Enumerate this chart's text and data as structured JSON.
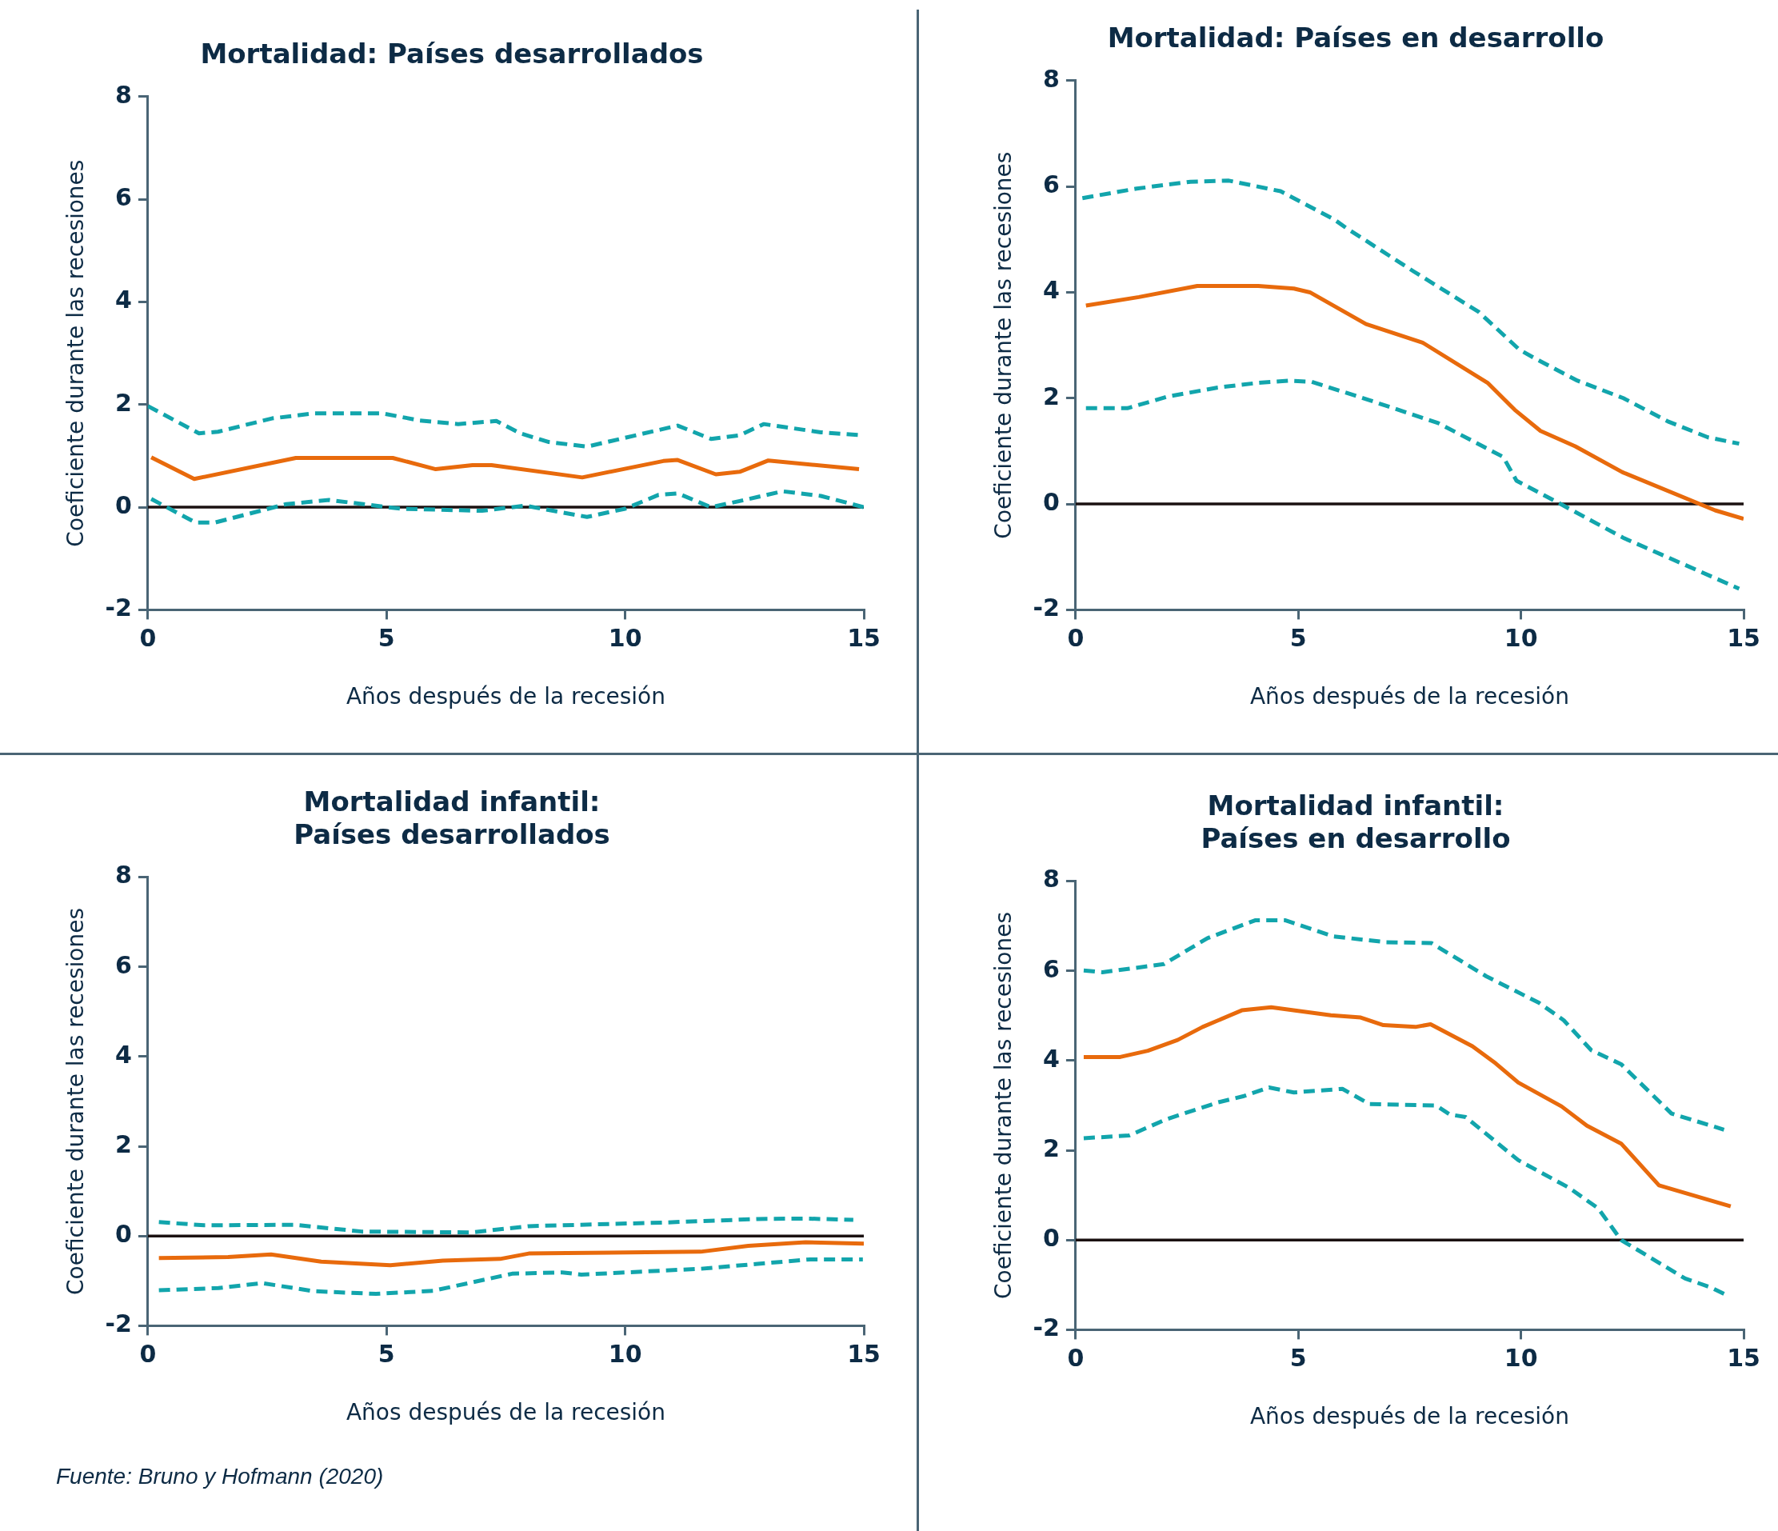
{
  "chart_data": [
    {
      "type": "line",
      "title": "Mortalidad: Países desarrollados",
      "xlabel": "Años después de la recesión",
      "ylabel": "Coeficiente durante las recesiones",
      "xlim": [
        0,
        15
      ],
      "xticks": [
        0,
        5,
        10,
        15
      ],
      "ylim": [
        -2,
        8
      ],
      "yticks": [
        -2,
        0,
        2,
        4,
        6,
        8
      ],
      "marker": "none",
      "legend": false,
      "ref_lines": [
        {
          "axis": "y",
          "value": 0,
          "color": "#1a1111"
        }
      ],
      "series": [
        {
          "color": "#e86a0c",
          "line_style": "solid",
          "x": [
            0.07,
            0.97,
            3.1,
            5.13,
            6.03,
            6.8,
            7.2,
            9.1,
            10.8,
            11.1,
            11.9,
            12.4,
            13.0,
            14.9
          ],
          "values": [
            0.97,
            0.55,
            0.96,
            0.96,
            0.74,
            0.82,
            0.82,
            0.58,
            0.9,
            0.92,
            0.64,
            0.69,
            0.91,
            0.74
          ]
        },
        {
          "color": "#12a5ac",
          "line_style": "dashed",
          "x": [
            0,
            1.07,
            1.47,
            2.6,
            3.5,
            4.9,
            5.7,
            6.5,
            7.3,
            7.8,
            8.4,
            9.2,
            11.1,
            11.8,
            12.4,
            12.9,
            14.1,
            15
          ],
          "values": [
            1.97,
            1.44,
            1.47,
            1.73,
            1.83,
            1.83,
            1.69,
            1.62,
            1.68,
            1.44,
            1.27,
            1.18,
            1.59,
            1.33,
            1.4,
            1.62,
            1.46,
            1.4
          ]
        },
        {
          "color": "#12a5ac",
          "line_style": "dashed",
          "x": [
            0.07,
            1.0,
            1.4,
            2.9,
            3.8,
            5.3,
            7.0,
            7.9,
            9.2,
            10.0,
            10.7,
            11.1,
            11.8,
            12.4,
            13.3,
            14.1,
            15
          ],
          "values": [
            0.16,
            -0.3,
            -0.3,
            0.06,
            0.14,
            -0.03,
            -0.07,
            0.03,
            -0.19,
            -0.03,
            0.24,
            0.27,
            0.0,
            0.12,
            0.31,
            0.22,
            0.0
          ]
        }
      ]
    },
    {
      "type": "line",
      "title": "Mortalidad: Países en desarrollo",
      "xlabel": "Años después de la recesión",
      "ylabel": "Coeficiente durante las recesiones",
      "xlim": [
        0,
        15
      ],
      "xticks": [
        0,
        5,
        10,
        15
      ],
      "ylim": [
        -2,
        8
      ],
      "yticks": [
        -2,
        0,
        2,
        4,
        6,
        8
      ],
      "marker": "none",
      "legend": false,
      "ref_lines": [
        {
          "axis": "y",
          "value": 0,
          "color": "#1a1111"
        }
      ],
      "series": [
        {
          "color": "#e86a0c",
          "line_style": "solid",
          "x": [
            0.23,
            1.42,
            2.73,
            4.1,
            4.9,
            5.26,
            6.52,
            7.79,
            9.25,
            9.86,
            10.44,
            11.22,
            12.28,
            14.36,
            15.0
          ],
          "values": [
            3.75,
            3.91,
            4.12,
            4.12,
            4.07,
            4.0,
            3.4,
            3.05,
            2.29,
            1.78,
            1.38,
            1.09,
            0.6,
            -0.12,
            -0.28
          ]
        },
        {
          "color": "#12a5ac",
          "line_style": "dashed",
          "x": [
            0.15,
            1.37,
            2.58,
            3.44,
            4.6,
            5.8,
            6.07,
            7.58,
            9.05,
            9.96,
            10.36,
            11.27,
            12.3,
            13.3,
            14.2,
            14.9
          ],
          "values": [
            5.78,
            5.96,
            6.09,
            6.11,
            5.91,
            5.38,
            5.22,
            4.4,
            3.63,
            2.92,
            2.73,
            2.33,
            2.0,
            1.56,
            1.26,
            1.14
          ]
        },
        {
          "color": "#12a5ac",
          "line_style": "dashed",
          "x": [
            0.23,
            1.16,
            2.07,
            3.19,
            4.1,
            4.8,
            5.3,
            6.6,
            8.14,
            9.6,
            9.9,
            10.8,
            12.3,
            14.9
          ],
          "values": [
            1.81,
            1.81,
            2.03,
            2.2,
            2.29,
            2.33,
            2.31,
            1.96,
            1.53,
            0.89,
            0.44,
            0.04,
            -0.64,
            -1.6
          ]
        }
      ]
    },
    {
      "type": "line",
      "title": "Mortalidad infantil:\nPaíses desarrollados",
      "xlabel": "Años después de la recesión",
      "ylabel": "Coeficiente durante las recesiones",
      "xlim": [
        0,
        15
      ],
      "xticks": [
        0,
        5,
        10,
        15
      ],
      "ylim": [
        -2,
        8
      ],
      "yticks": [
        -2,
        0,
        2,
        4,
        6,
        8
      ],
      "marker": "none",
      "legend": false,
      "ref_lines": [
        {
          "axis": "y",
          "value": 0,
          "color": "#1a1111"
        }
      ],
      "annotations": [
        "Fuente: Bruno y Hofmann (2020)"
      ],
      "series": [
        {
          "color": "#e86a0c",
          "line_style": "solid",
          "x": [
            0.23,
            1.68,
            2.58,
            3.63,
            5.08,
            6.18,
            7.38,
            7.98,
            8.78,
            11.58,
            12.58,
            13.78,
            15.0
          ],
          "values": [
            -0.49,
            -0.47,
            -0.41,
            -0.57,
            -0.65,
            -0.55,
            -0.51,
            -0.39,
            -0.38,
            -0.35,
            -0.22,
            -0.14,
            -0.17
          ]
        },
        {
          "color": "#12a5ac",
          "line_style": "dashed",
          "x": [
            0.23,
            1.18,
            3.08,
            4.48,
            6.78,
            7.98,
            10.78,
            12.78,
            13.78,
            14.78
          ],
          "values": [
            0.31,
            0.24,
            0.25,
            0.1,
            0.08,
            0.22,
            0.3,
            0.38,
            0.39,
            0.36
          ]
        },
        {
          "color": "#12a5ac",
          "line_style": "dashed",
          "x": [
            0.23,
            1.48,
            2.4,
            3.48,
            4.78,
            5.98,
            7.63,
            8.68,
            9.08,
            11.58,
            12.78,
            13.88,
            14.98
          ],
          "values": [
            -1.21,
            -1.16,
            -1.05,
            -1.23,
            -1.29,
            -1.22,
            -0.84,
            -0.81,
            -0.86,
            -0.73,
            -0.62,
            -0.52,
            -0.52
          ]
        }
      ]
    },
    {
      "type": "line",
      "title": "Mortalidad infantil:\nPaíses en desarrollo",
      "xlabel": "Años después de la recesión",
      "ylabel": "Coeficiente durante las recesiones",
      "xlim": [
        0,
        15
      ],
      "xticks": [
        0,
        5,
        10,
        15
      ],
      "ylim": [
        -2,
        8
      ],
      "yticks": [
        -2,
        0,
        2,
        4,
        6,
        8
      ],
      "marker": "none",
      "legend": false,
      "ref_lines": [
        {
          "axis": "y",
          "value": 0,
          "color": "#1a1111"
        }
      ],
      "series": [
        {
          "color": "#e86a0c",
          "line_style": "solid",
          "x": [
            0.18,
            1.0,
            1.62,
            2.29,
            2.85,
            3.73,
            4.39,
            5.73,
            6.4,
            6.91,
            7.63,
            7.97,
            8.91,
            9.43,
            9.94,
            10.91,
            11.48,
            12.25,
            13.1,
            14.71
          ],
          "values": [
            4.08,
            4.08,
            4.22,
            4.46,
            4.75,
            5.12,
            5.19,
            5.01,
            4.96,
            4.79,
            4.75,
            4.81,
            4.32,
            3.94,
            3.51,
            2.98,
            2.55,
            2.15,
            1.22,
            0.75
          ]
        },
        {
          "color": "#12a5ac",
          "line_style": "dashed",
          "x": [
            0.18,
            0.6,
            1.98,
            2.96,
            4.04,
            4.7,
            5.78,
            6.96,
            7.99,
            9.22,
            10.4,
            10.96,
            11.58,
            12.25,
            13.38,
            14.56
          ],
          "values": [
            6.01,
            5.97,
            6.15,
            6.73,
            7.13,
            7.13,
            6.77,
            6.64,
            6.62,
            5.88,
            5.29,
            4.9,
            4.23,
            3.92,
            2.82,
            2.46
          ]
        },
        {
          "color": "#12a5ac",
          "line_style": "dashed",
          "x": [
            0.18,
            1.2,
            2.03,
            3.2,
            3.78,
            4.34,
            4.9,
            5.99,
            6.6,
            8.09,
            8.4,
            8.76,
            9.94,
            11.07,
            11.73,
            12.25,
            13.69,
            14.25,
            14.56
          ],
          "values": [
            2.27,
            2.33,
            2.69,
            3.07,
            3.21,
            3.4,
            3.29,
            3.37,
            3.03,
            3.0,
            2.8,
            2.74,
            1.78,
            1.17,
            0.71,
            0.0,
            -0.86,
            -1.05,
            -1.2
          ]
        }
      ]
    }
  ]
}
